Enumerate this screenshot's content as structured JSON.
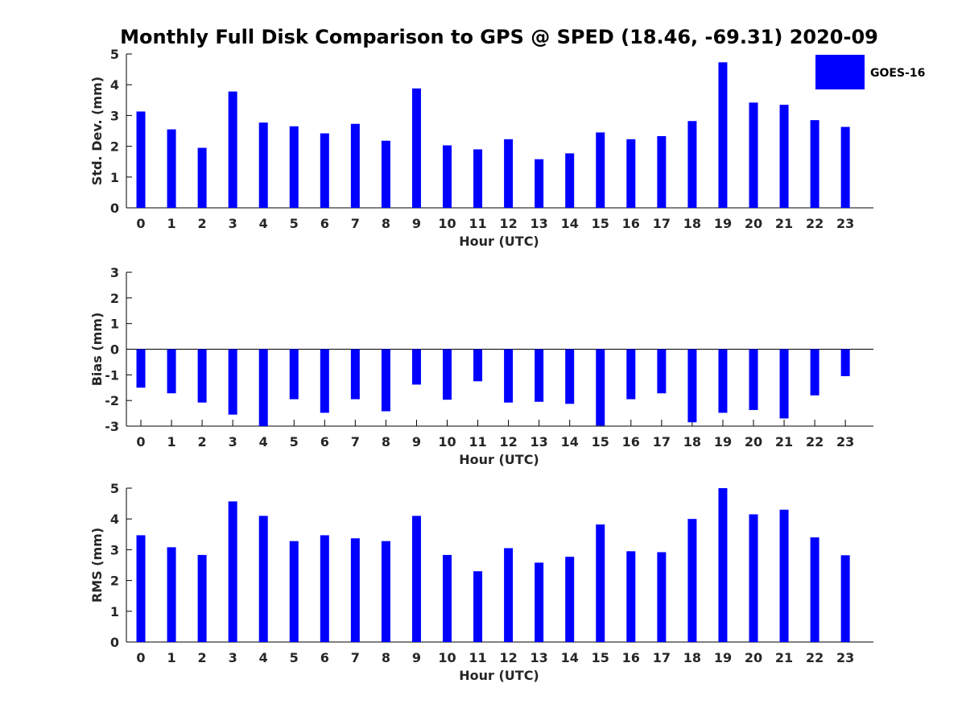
{
  "chart_data": {
    "title": "Monthly Full Disk Comparison to GPS @ SPED (18.46, -69.31) 2020-09",
    "legend": {
      "placement": "top-right",
      "label": "GOES-16",
      "color": "#0000ff"
    },
    "panels": [
      {
        "type": "bar",
        "ylabel": "Std. Dev. (mm)",
        "xlabel": "Hour (UTC)",
        "ylim": [
          0,
          5
        ],
        "yticks": [
          0,
          1,
          2,
          3,
          4,
          5
        ],
        "categories": [
          "0",
          "1",
          "2",
          "3",
          "4",
          "5",
          "6",
          "7",
          "8",
          "9",
          "10",
          "11",
          "12",
          "13",
          "14",
          "15",
          "16",
          "17",
          "18",
          "19",
          "20",
          "21",
          "22",
          "23"
        ],
        "series": [
          {
            "name": "GOES-16",
            "color": "#0000ff",
            "values": [
              3.13,
              2.55,
              1.95,
              3.78,
              2.77,
              2.65,
              2.42,
              2.73,
              2.18,
              3.88,
              2.03,
              1.9,
              2.23,
              1.58,
              1.77,
              2.45,
              2.23,
              2.33,
              2.82,
              4.73,
              3.42,
              3.35,
              2.85,
              2.63
            ]
          }
        ]
      },
      {
        "type": "bar",
        "ylabel": "Bias (mm)",
        "xlabel": "Hour (UTC)",
        "ylim": [
          -3,
          3
        ],
        "yticks": [
          -3,
          -2,
          -1,
          0,
          1,
          2,
          3
        ],
        "categories": [
          "0",
          "1",
          "2",
          "3",
          "4",
          "5",
          "6",
          "7",
          "8",
          "9",
          "10",
          "11",
          "12",
          "13",
          "14",
          "15",
          "16",
          "17",
          "18",
          "19",
          "20",
          "21",
          "22",
          "23"
        ],
        "series": [
          {
            "name": "GOES-16",
            "color": "#0000ff",
            "values": [
              -1.5,
              -1.72,
              -2.08,
              -2.55,
              -3.0,
              -1.95,
              -2.48,
              -1.95,
              -2.42,
              -1.38,
              -1.97,
              -1.25,
              -2.08,
              -2.05,
              -2.13,
              -2.98,
              -1.95,
              -1.72,
              -2.85,
              -2.48,
              -2.37,
              -2.7,
              -1.8,
              -1.05
            ]
          }
        ]
      },
      {
        "type": "bar",
        "ylabel": "RMS (mm)",
        "xlabel": "Hour (UTC)",
        "ylim": [
          0,
          5
        ],
        "yticks": [
          0,
          1,
          2,
          3,
          4,
          5
        ],
        "categories": [
          "0",
          "1",
          "2",
          "3",
          "4",
          "5",
          "6",
          "7",
          "8",
          "9",
          "10",
          "11",
          "12",
          "13",
          "14",
          "15",
          "16",
          "17",
          "18",
          "19",
          "20",
          "21",
          "22",
          "23"
        ],
        "series": [
          {
            "name": "GOES-16",
            "color": "#0000ff",
            "values": [
              3.47,
              3.08,
              2.83,
              4.57,
              4.1,
              3.28,
              3.47,
              3.37,
              3.28,
              4.1,
              2.83,
              2.3,
              3.05,
              2.58,
              2.77,
              3.82,
              2.95,
              2.92,
              4.0,
              5.0,
              4.15,
              4.3,
              3.4,
              2.82
            ]
          }
        ]
      }
    ]
  }
}
